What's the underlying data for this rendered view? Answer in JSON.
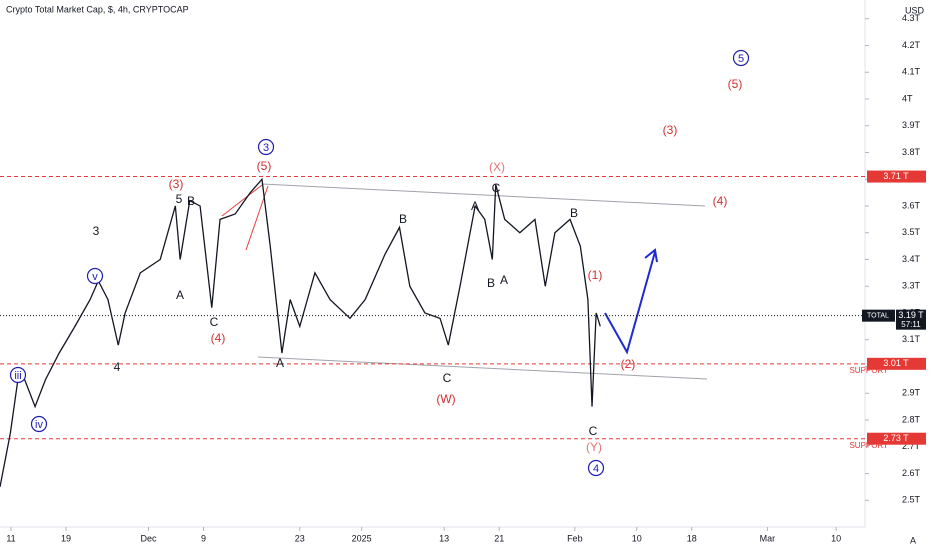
{
  "chart_data": {
    "type": "line",
    "title": "Crypto Total Market Cap, $, 4h, CRYPTOCAP",
    "currency": "USD",
    "corner_label": "A",
    "color": "#131722",
    "x": [
      -1.6,
      -0.1,
      1,
      2,
      3.5,
      5,
      7,
      9.3,
      11.5,
      12.7,
      14.1,
      15.6,
      16.6,
      18.8,
      21.7,
      23.9,
      24.6,
      26,
      27.5,
      29.2,
      30.4,
      32.6,
      34.8,
      36.5,
      37.7,
      39.4,
      40.6,
      42,
      44.2,
      46.4,
      49.3,
      51.5,
      54.4,
      56.5,
      58,
      60.2,
      62.4,
      63.6,
      65.3,
      67.5,
      68.9,
      70,
      70.5,
      71.8,
      74,
      76.2,
      77.7,
      79.1,
      81.3,
      82.8,
      83.9,
      84.5,
      85.1,
      85.7
    ],
    "values": [
      2.55,
      2.75,
      2.95,
      2.95,
      2.85,
      2.95,
      3.05,
      3.15,
      3.25,
      3.32,
      3.25,
      3.08,
      3.2,
      3.35,
      3.4,
      3.6,
      3.4,
      3.62,
      3.6,
      3.22,
      3.55,
      3.57,
      3.65,
      3.7,
      3.45,
      3.05,
      3.25,
      3.15,
      3.35,
      3.25,
      3.18,
      3.25,
      3.42,
      3.52,
      3.3,
      3.2,
      3.18,
      3.08,
      3.3,
      3.6,
      3.55,
      3.4,
      3.68,
      3.55,
      3.5,
      3.55,
      3.3,
      3.5,
      3.55,
      3.45,
      3.25,
      2.85,
      3.2,
      3.15
    ],
    "xlim": [
      -1.6,
      124.2
    ],
    "xticks": [
      {
        "value": 0,
        "label": "11"
      },
      {
        "value": 8,
        "label": "19"
      },
      {
        "value": 20,
        "label": "Dec"
      },
      {
        "value": 28,
        "label": "9"
      },
      {
        "value": 42,
        "label": "23"
      },
      {
        "value": 51,
        "label": "2025"
      },
      {
        "value": 63,
        "label": "13"
      },
      {
        "value": 71,
        "label": "21"
      },
      {
        "value": 82,
        "label": "Feb"
      },
      {
        "value": 91,
        "label": "10"
      },
      {
        "value": 99,
        "label": "18"
      },
      {
        "value": 110,
        "label": "Mar"
      },
      {
        "value": 120,
        "label": "10"
      }
    ],
    "ylim": [
      2.4,
      4.37
    ],
    "yticks": [
      {
        "value": 2.5,
        "label": "2.5T"
      },
      {
        "value": 2.6,
        "label": "2.6T"
      },
      {
        "value": 2.7,
        "label": "2.7T"
      },
      {
        "value": 2.8,
        "label": "2.8T"
      },
      {
        "value": 2.9,
        "label": "2.9T"
      },
      {
        "value": 3.0,
        "label": "3T"
      },
      {
        "value": 3.1,
        "label": "3.1T"
      },
      {
        "value": 3.2,
        "label": "3.2T"
      },
      {
        "value": 3.3,
        "label": "3.3T"
      },
      {
        "value": 3.4,
        "label": "3.4T"
      },
      {
        "value": 3.5,
        "label": "3.5T"
      },
      {
        "value": 3.6,
        "label": "3.6T"
      },
      {
        "value": 3.7,
        "label": "3.7T"
      },
      {
        "value": 3.8,
        "label": "3.8T"
      },
      {
        "value": 3.9,
        "label": "3.9T"
      },
      {
        "value": 4.0,
        "label": "4T"
      },
      {
        "value": 4.1,
        "label": "4.1T"
      },
      {
        "value": 4.2,
        "label": "4.2T"
      },
      {
        "value": 4.3,
        "label": "4.3T"
      }
    ],
    "levels": [
      {
        "value": 3.71,
        "label": "3.71 T"
      },
      {
        "value": 3.01,
        "label": "3.01 T",
        "name": "SUPPORT"
      },
      {
        "value": 2.73,
        "label": "2.73 T",
        "name": "SUPPORT"
      }
    ],
    "current": {
      "name": "TOTAL",
      "value": 3.19,
      "label": "3.19 T",
      "countdown": "57:11"
    },
    "annotations": [
      "(3)",
      "5",
      "B",
      "A",
      "C",
      "(4)",
      "3",
      "(5)",
      "3",
      "v",
      "4",
      "iii",
      "iv",
      "A",
      "B",
      "C",
      "(W)",
      "A",
      "(X)",
      "C",
      "B",
      "A",
      "B",
      "(1)",
      "(2)",
      "C",
      "(Y)",
      "4",
      "(4)",
      "(3)",
      "(5)",
      "5"
    ]
  }
}
